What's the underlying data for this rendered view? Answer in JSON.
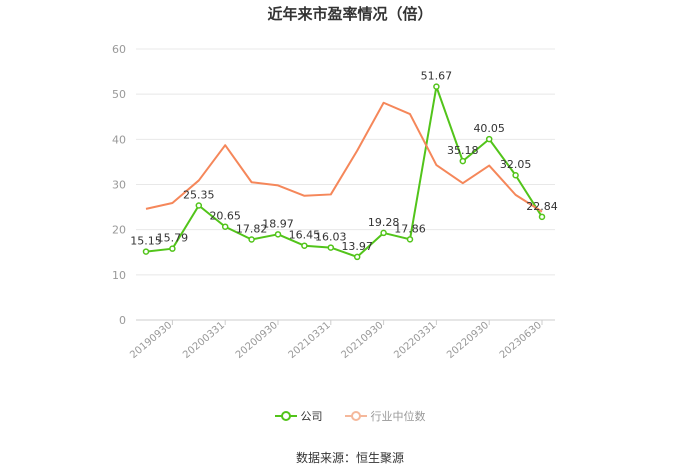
{
  "chart_data": {
    "type": "line",
    "title": "近年来市盈率情况（倍）",
    "ylim": [
      0,
      60
    ],
    "yticks": [
      0,
      10,
      20,
      30,
      40,
      50,
      60
    ],
    "x_tick_labels": [
      "20190930",
      "20200331",
      "20200930",
      "20210331",
      "20210930",
      "20220331",
      "20220930",
      "20230630"
    ],
    "x": [
      "2019-09-30",
      "2019-12-31",
      "2020-03-31",
      "2020-06-30",
      "2020-09-30",
      "2020-12-31",
      "2021-03-31",
      "2021-06-30",
      "2021-09-30",
      "2021-12-31",
      "2022-03-31",
      "2022-06-30",
      "2022-09-30",
      "2022-12-31",
      "2023-03-31",
      "2023-06-30"
    ],
    "series": [
      {
        "name": "公司",
        "color": "#52c41a",
        "values": [
          15.15,
          15.79,
          25.35,
          20.65,
          17.82,
          18.97,
          16.45,
          16.03,
          13.97,
          19.28,
          17.86,
          51.67,
          35.18,
          40.05,
          32.05,
          22.84
        ],
        "labels": [
          "15.15",
          "15.79",
          "25.35",
          "20.65",
          "17.82",
          "18.97",
          "16.45",
          "16.03",
          "13.97",
          "19.28",
          "17.86",
          "51.67",
          "35.18",
          "40.05",
          "32.05",
          "22.84"
        ]
      },
      {
        "name": "行业中位数",
        "color": "#f5875a",
        "values": [
          24.6,
          25.9,
          30.9,
          38.7,
          30.5,
          29.8,
          27.5,
          27.8,
          37.5,
          48.1,
          45.6,
          34.3,
          30.3,
          34.2,
          27.7,
          24.0
        ]
      }
    ],
    "legend_position": "bottom",
    "grid": "horizontal"
  },
  "footer": {
    "source": "数据来源：恒生聚源"
  }
}
